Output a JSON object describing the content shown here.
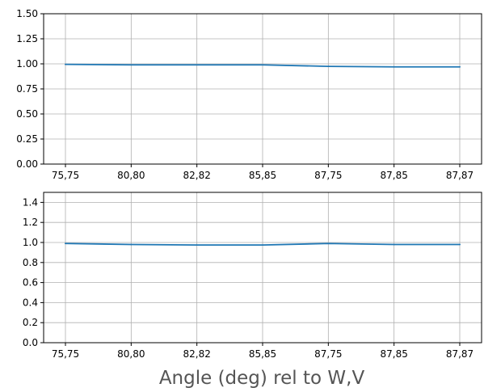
{
  "chart_data": [
    {
      "type": "line",
      "categories": [
        "75,75",
        "80,80",
        "82,82",
        "85,85",
        "87,75",
        "87,85",
        "87,87"
      ],
      "series": [
        {
          "values": [
            0.995,
            0.99,
            0.99,
            0.99,
            0.975,
            0.97,
            0.97
          ]
        }
      ],
      "ylim": [
        0,
        1.5
      ],
      "yticks": [
        "0.00",
        "0.25",
        "0.50",
        "0.75",
        "1.00",
        "1.25",
        "1.50"
      ],
      "ytick_values": [
        0,
        0.25,
        0.5,
        0.75,
        1.0,
        1.25,
        1.5
      ],
      "xlabel": "",
      "ylabel": "",
      "grid": true,
      "line_color": "#1f77b4"
    },
    {
      "type": "line",
      "categories": [
        "75,75",
        "80,80",
        "82,82",
        "85,85",
        "87,75",
        "87,85",
        "87,87"
      ],
      "series": [
        {
          "values": [
            0.99,
            0.98,
            0.975,
            0.975,
            0.99,
            0.98,
            0.98
          ]
        }
      ],
      "ylim": [
        0,
        1.5
      ],
      "yticks": [
        "0.0",
        "0.2",
        "0.4",
        "0.6",
        "0.8",
        "1.0",
        "1.2",
        "1.4"
      ],
      "ytick_values": [
        0,
        0.2,
        0.4,
        0.6,
        0.8,
        1.0,
        1.2,
        1.4
      ],
      "xlabel": "Angle (deg) rel to W,V",
      "ylabel": "",
      "grid": true,
      "line_color": "#1f77b4"
    }
  ]
}
